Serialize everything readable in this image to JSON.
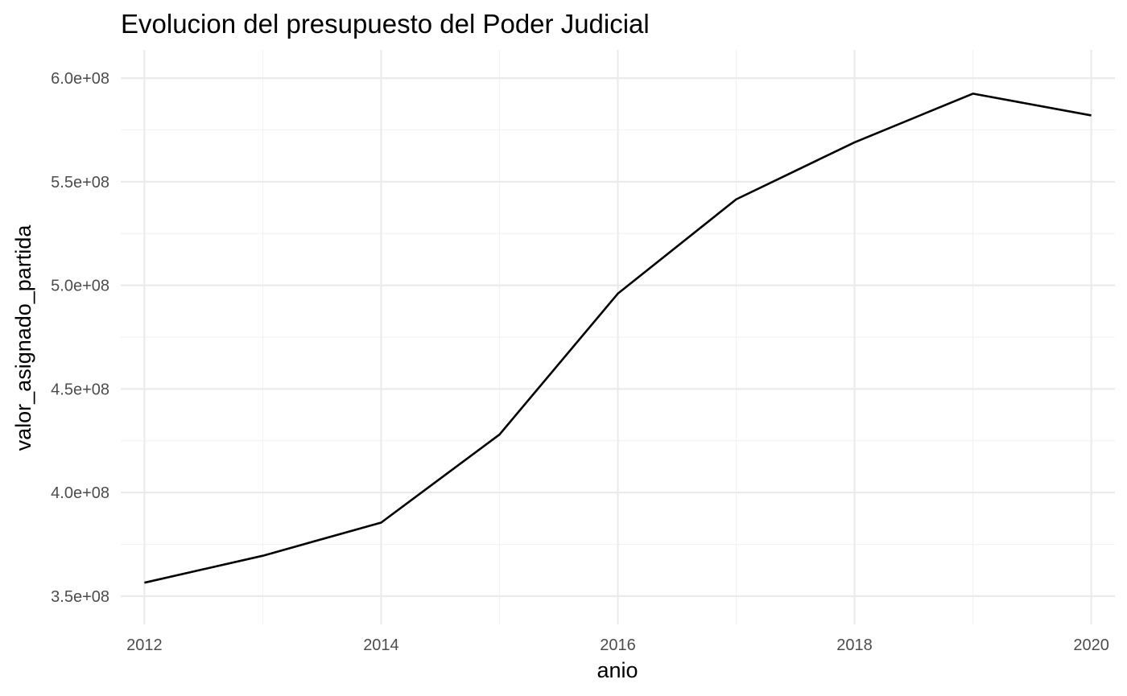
{
  "chart_data": {
    "type": "line",
    "title": "Evolucion del presupuesto del Poder Judicial",
    "xlabel": "anio",
    "ylabel": "valor_asignado_partida",
    "x": [
      2012,
      2013,
      2014,
      2015,
      2016,
      2017,
      2018,
      2019,
      2020
    ],
    "series": [
      {
        "name": "valor_asignado_partida",
        "values": [
          356500000,
          369500000,
          385500000,
          428000000,
          496000000,
          541500000,
          569000000,
          592500000,
          582000000
        ]
      }
    ],
    "xlim": [
      2011.8,
      2020.2
    ],
    "ylim": [
      350000000,
      600000000
    ],
    "x_ticks": [
      2012,
      2014,
      2016,
      2018,
      2020
    ],
    "x_tick_labels": [
      "2012",
      "2014",
      "2016",
      "2018",
      "2020"
    ],
    "y_ticks": [
      350000000,
      400000000,
      450000000,
      500000000,
      550000000,
      600000000
    ],
    "y_tick_labels": [
      "3.5e+08",
      "4.0e+08",
      "4.5e+08",
      "5.0e+08",
      "5.5e+08",
      "6.0e+08"
    ],
    "grid": true,
    "legend": "none",
    "colors": {
      "line": "#000000",
      "grid_major": "#ebebeb",
      "grid_minor": "#f2f2f2",
      "tick_text": "#4d4d4d"
    }
  }
}
